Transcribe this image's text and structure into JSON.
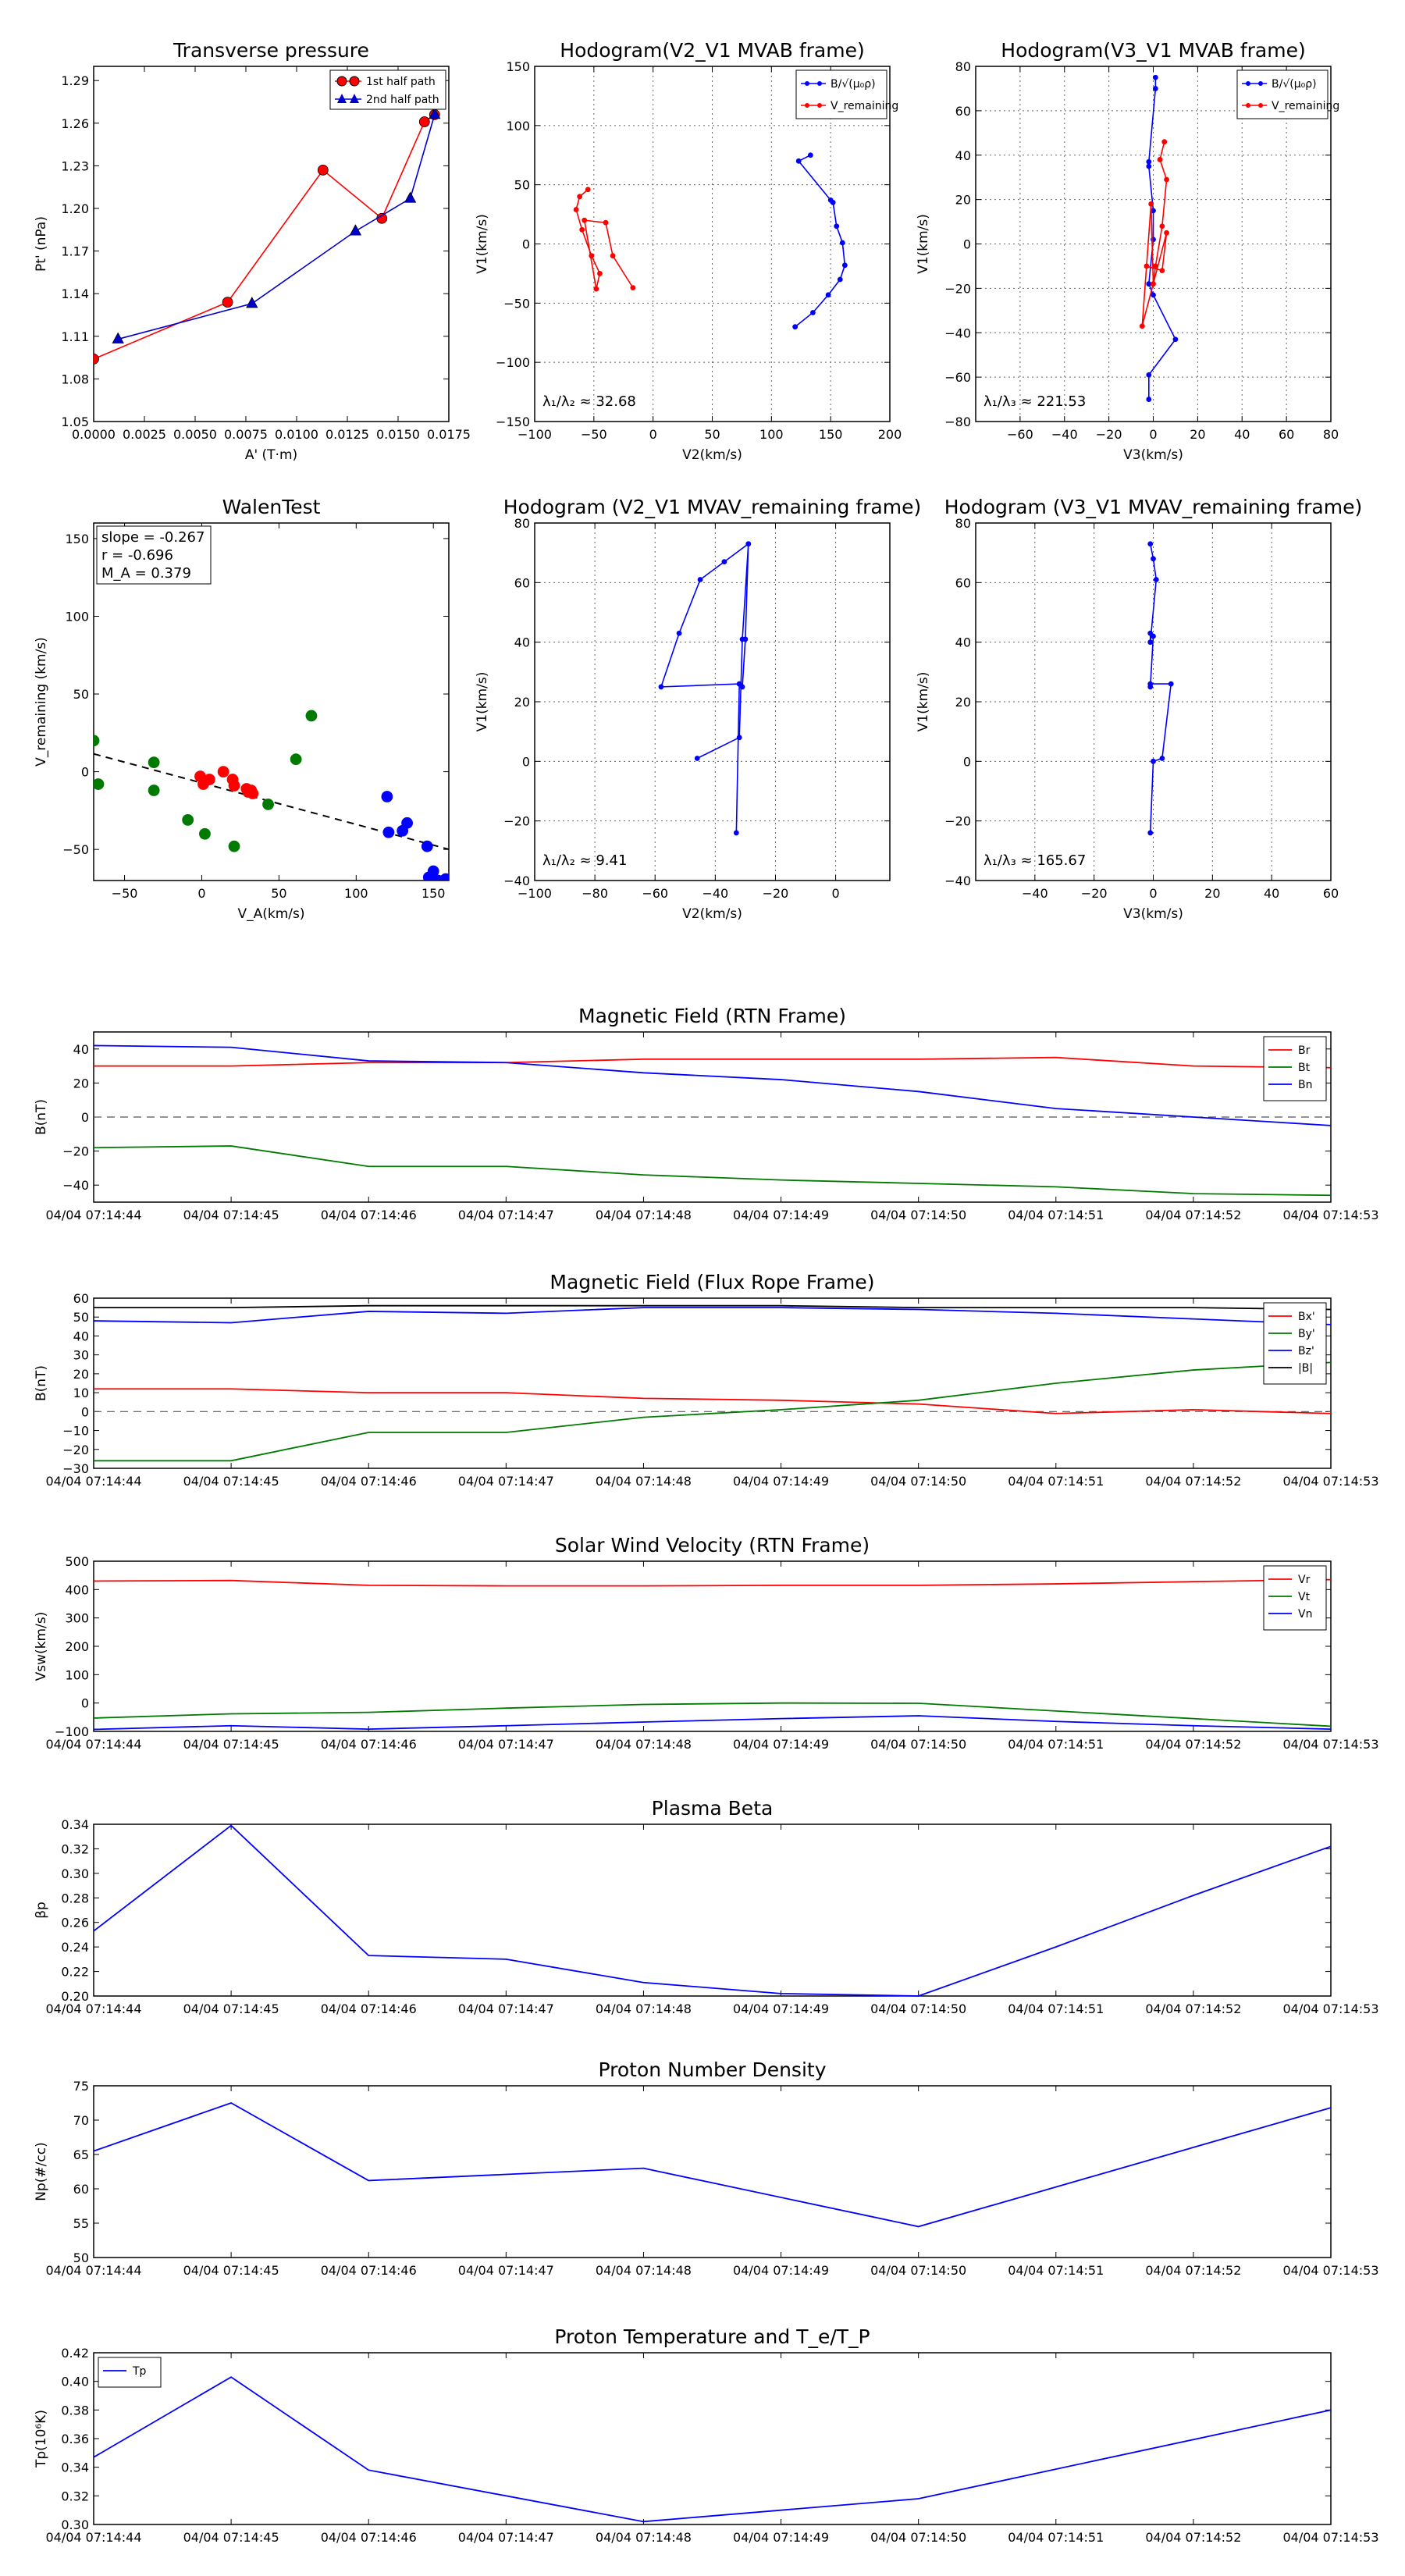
{
  "chart_data": [
    {
      "id": "tp",
      "type": "line",
      "title": "Transverse pressure",
      "xlabel": "A' (T·m)",
      "ylabel": "Pt' (nPa)",
      "xlim": [
        0,
        0.0175
      ],
      "ylim": [
        1.05,
        1.3
      ],
      "xticks": [
        0,
        0.0025,
        0.005,
        0.0075,
        0.01,
        0.0125,
        0.015,
        0.0175
      ],
      "xtick_labels": [
        "0.0000",
        "0.0025",
        "0.0050",
        "0.0075",
        "0.0100",
        "0.0125",
        "0.0150",
        "0.0175"
      ],
      "yticks": [
        1.05,
        1.08,
        1.11,
        1.14,
        1.17,
        1.2,
        1.23,
        1.26,
        1.29
      ],
      "ytick_labels": [
        "1.05",
        "1.08",
        "1.11",
        "1.14",
        "1.17",
        "1.20",
        "1.23",
        "1.26",
        "1.29"
      ],
      "grid": false,
      "legend_loc": "top-right",
      "series": [
        {
          "name": "1st half path",
          "color": "#ff0000",
          "marker": "circle",
          "x": [
            0,
            0.0066,
            0.0113,
            0.0142,
            0.0163,
            0.0168
          ],
          "y": [
            1.094,
            1.134,
            1.227,
            1.193,
            1.261,
            1.266
          ]
        },
        {
          "name": "2nd half path",
          "color": "#0000cc",
          "marker": "triangle",
          "x": [
            0.0168,
            0.0156,
            0.0129,
            0.0078,
            0.0012
          ],
          "y": [
            1.266,
            1.207,
            1.184,
            1.133,
            1.108
          ]
        }
      ]
    },
    {
      "id": "h1",
      "type": "line",
      "title": "Hodogram(V2_V1 MVAB frame)",
      "xlabel": "V2(km/s)",
      "ylabel": "V1(km/s)",
      "xlim": [
        -100,
        200
      ],
      "ylim": [
        -150,
        150
      ],
      "xticks": [
        -100,
        -50,
        0,
        50,
        100,
        150,
        200
      ],
      "xtick_labels": [
        "−100",
        "−50",
        "0",
        "50",
        "100",
        "150",
        "200"
      ],
      "yticks": [
        -150,
        -100,
        -50,
        0,
        50,
        100,
        150
      ],
      "ytick_labels": [
        "−150",
        "−100",
        "−50",
        "0",
        "50",
        "100",
        "150"
      ],
      "grid": true,
      "legend_loc": "top-right",
      "legend": [
        "B/√(μ₀ρ)",
        "V_remaining"
      ],
      "annotation": "λ₁/λ₂ ≈ 32.68",
      "series": [
        {
          "name": "B",
          "color": "#0000ff",
          "x": [
            133,
            123,
            150,
            152,
            155,
            160,
            162,
            158,
            148,
            135,
            120
          ],
          "y": [
            75,
            70,
            37,
            35,
            15,
            1,
            -18,
            -30,
            -43,
            -58,
            -70
          ]
        },
        {
          "name": "V",
          "color": "#ff0000",
          "x": [
            -55,
            -62,
            -65,
            -60,
            -52,
            -45,
            -48,
            -58,
            -40,
            -34,
            -17
          ],
          "y": [
            46,
            40,
            29,
            12,
            -10,
            -25,
            -38,
            20,
            18,
            -10,
            -37
          ]
        }
      ]
    },
    {
      "id": "h2",
      "type": "line",
      "title": "Hodogram(V3_V1 MVAB frame)",
      "xlabel": "V3(km/s)",
      "ylabel": "V1(km/s)",
      "xlim": [
        -80,
        80
      ],
      "ylim": [
        -80,
        80
      ],
      "xticks": [
        -60,
        -40,
        -20,
        0,
        20,
        40,
        60,
        80
      ],
      "xtick_labels": [
        "−60",
        "−40",
        "−20",
        "0",
        "20",
        "40",
        "60",
        "80"
      ],
      "yticks": [
        -80,
        -60,
        -40,
        -20,
        0,
        20,
        40,
        60,
        80
      ],
      "ytick_labels": [
        "−80",
        "−60",
        "−40",
        "−20",
        "0",
        "20",
        "40",
        "60",
        "80"
      ],
      "grid": true,
      "legend_loc": "top-right",
      "legend": [
        "B/√(μ₀ρ)",
        "V_remaining"
      ],
      "annotation": "λ₁/λ₃ ≈ 221.53",
      "series": [
        {
          "name": "B",
          "color": "#0000ff",
          "x": [
            1,
            1,
            -2,
            -2,
            0,
            0,
            -2,
            0,
            10,
            -2,
            -2
          ],
          "y": [
            75,
            70,
            37,
            35,
            15,
            2,
            -18,
            -23,
            -43,
            -59,
            -70
          ]
        },
        {
          "name": "V",
          "color": "#ff0000",
          "x": [
            5,
            3,
            6,
            4,
            1,
            0,
            -1,
            -5,
            6,
            4,
            -3
          ],
          "y": [
            46,
            38,
            29,
            8,
            -10,
            -18,
            18,
            -37,
            5,
            -12,
            -10
          ]
        }
      ]
    },
    {
      "id": "walen",
      "type": "scatter",
      "title": "WalenTest",
      "xlabel": "V_A(km/s)",
      "ylabel": "V_remaining (km/s)",
      "xlim": [
        -70,
        160
      ],
      "ylim": [
        -70,
        160
      ],
      "xticks": [
        -50,
        0,
        50,
        100,
        150
      ],
      "xtick_labels": [
        "−50",
        "0",
        "50",
        "100",
        "150"
      ],
      "yticks": [
        -50,
        0,
        50,
        100,
        150
      ],
      "ytick_labels": [
        "−50",
        "0",
        "50",
        "100",
        "150"
      ],
      "grid": false,
      "stats": [
        "slope = -0.267",
        "r = -0.696",
        "M_A = 0.379"
      ],
      "fit_line": {
        "slope": -0.267,
        "intercept": -7.2
      },
      "series": [
        {
          "name": "green",
          "color": "#007a00",
          "x": [
            -70,
            -67,
            -31,
            -31,
            -9,
            2,
            21,
            43,
            61,
            71
          ],
          "y": [
            20,
            -8,
            6,
            -12,
            -31,
            -40,
            -48,
            -21,
            8,
            36
          ]
        },
        {
          "name": "red",
          "color": "#ff0000",
          "x": [
            -1,
            1,
            5,
            14,
            20,
            21,
            29,
            30,
            32,
            33
          ],
          "y": [
            -3,
            -8,
            -5,
            0,
            -5,
            -9,
            -11,
            -13,
            -12,
            -14
          ]
        },
        {
          "name": "blue",
          "color": "#0000ff",
          "x": [
            120,
            121,
            130,
            133,
            146,
            147,
            150,
            153,
            158
          ],
          "y": [
            -16,
            -39,
            -38,
            -33,
            -48,
            -68,
            -64,
            -70,
            -69
          ]
        }
      ]
    },
    {
      "id": "h3",
      "type": "line",
      "title": "Hodogram (V2_V1 MVAV_remaining frame)",
      "xlabel": "V2(km/s)",
      "ylabel": "V1(km/s)",
      "xlim": [
        -100,
        18
      ],
      "ylim": [
        -40,
        80
      ],
      "xticks": [
        -100,
        -80,
        -60,
        -40,
        -20,
        0
      ],
      "xtick_labels": [
        "−100",
        "−80",
        "−60",
        "−40",
        "−20",
        "0"
      ],
      "yticks": [
        -40,
        -20,
        0,
        20,
        40,
        60,
        80
      ],
      "ytick_labels": [
        "−40",
        "−20",
        "0",
        "20",
        "40",
        "60",
        "80"
      ],
      "grid": true,
      "annotation": "λ₁/λ₂ ≈ 9.41",
      "series": [
        {
          "name": "B",
          "color": "#0000ff",
          "x": [
            -29,
            -30,
            -31,
            -32,
            -58,
            -52,
            -45,
            -37,
            -29,
            -31,
            -32,
            -46
          ],
          "y": [
            73,
            41,
            25,
            26,
            25,
            43,
            61,
            67,
            73,
            41,
            8,
            1
          ]
        },
        {
          "name": "B2",
          "color": "#0000ff",
          "x": [
            -32,
            -33
          ],
          "y": [
            26,
            -24
          ]
        }
      ]
    },
    {
      "id": "h4",
      "type": "line",
      "title": "Hodogram (V3_V1 MVAV_remaining frame)",
      "xlabel": "V3(km/s)",
      "ylabel": "V1(km/s)",
      "xlim": [
        -60,
        60
      ],
      "ylim": [
        -40,
        80
      ],
      "xticks": [
        -40,
        -20,
        0,
        20,
        40,
        60
      ],
      "xtick_labels": [
        "−40",
        "−20",
        "0",
        "20",
        "40",
        "60"
      ],
      "yticks": [
        -40,
        -20,
        0,
        20,
        40,
        60,
        80
      ],
      "ytick_labels": [
        "−40",
        "−20",
        "0",
        "20",
        "40",
        "60",
        "80"
      ],
      "grid": true,
      "annotation": "λ₁/λ₃ ≈ 165.67",
      "series": [
        {
          "name": "B",
          "color": "#0000ff",
          "x": [
            -1,
            0,
            1,
            -1,
            -1,
            0,
            -1,
            -1,
            6,
            3,
            0,
            -1
          ],
          "y": [
            73,
            68,
            61,
            40,
            43,
            42,
            25,
            26,
            26,
            1,
            0,
            -24
          ]
        }
      ]
    },
    {
      "id": "mag_rtn",
      "type": "line",
      "title": "Magnetic Field (RTN Frame)",
      "ylabel": "B(nT)",
      "ylim": [
        -50,
        50
      ],
      "yticks": [
        -40,
        -20,
        0,
        20,
        40
      ],
      "ytick_labels": [
        "−40",
        "−20",
        "0",
        "20",
        "40"
      ],
      "zero_line": true,
      "legend_loc": "top-right",
      "series": [
        {
          "name": "Br",
          "color": "#ff0000",
          "values": [
            30,
            30,
            32,
            32,
            34,
            34,
            34,
            35,
            30,
            29
          ]
        },
        {
          "name": "Bt",
          "color": "#007a00",
          "values": [
            -18,
            -17,
            -29,
            -29,
            -34,
            -37,
            -39,
            -41,
            -45,
            -46
          ]
        },
        {
          "name": "Bn",
          "color": "#0000ff",
          "values": [
            42,
            41,
            33,
            32,
            26,
            22,
            15,
            5,
            0,
            -5
          ]
        }
      ]
    },
    {
      "id": "mag_fr",
      "type": "line",
      "title": "Magnetic Field (Flux Rope Frame)",
      "ylabel": "B(nT)",
      "ylim": [
        -30,
        60
      ],
      "yticks": [
        -30,
        -20,
        -10,
        0,
        10,
        20,
        30,
        40,
        50,
        60
      ],
      "ytick_labels": [
        "−30",
        "−20",
        "−10",
        "0",
        "10",
        "20",
        "30",
        "40",
        "50",
        "60"
      ],
      "zero_line": true,
      "legend_loc": "top-right",
      "series": [
        {
          "name": "Bx'",
          "color": "#ff0000",
          "values": [
            12,
            12,
            10,
            10,
            7,
            6,
            4,
            -1,
            1,
            -1
          ]
        },
        {
          "name": "By'",
          "color": "#007a00",
          "values": [
            -26,
            -26,
            -11,
            -11,
            -3,
            1,
            6,
            15,
            22,
            26
          ]
        },
        {
          "name": "Bz'",
          "color": "#0000ff",
          "values": [
            48,
            47,
            53,
            52,
            55,
            55,
            54,
            52,
            49,
            46
          ]
        },
        {
          "name": "|B|",
          "color": "#000000",
          "values": [
            55,
            55,
            56,
            56,
            56,
            56,
            55,
            55,
            55,
            54
          ]
        }
      ]
    },
    {
      "id": "vsw",
      "type": "line",
      "title": "Solar Wind Velocity (RTN Frame)",
      "ylabel": "Vsw(km/s)",
      "ylim": [
        -100,
        500
      ],
      "yticks": [
        -100,
        0,
        100,
        200,
        300,
        400,
        500
      ],
      "ytick_labels": [
        "−100",
        "0",
        "100",
        "200",
        "300",
        "400",
        "500"
      ],
      "legend_loc": "top-right",
      "series": [
        {
          "name": "Vr",
          "color": "#ff0000",
          "values": [
            430,
            432,
            415,
            413,
            413,
            415,
            415,
            420,
            428,
            435
          ]
        },
        {
          "name": "Vt",
          "color": "#007a00",
          "values": [
            -53,
            -38,
            -33,
            -18,
            -5,
            0,
            -1,
            -28,
            -55,
            -82
          ]
        },
        {
          "name": "Vn",
          "color": "#0000ff",
          "values": [
            -93,
            -80,
            -92,
            -80,
            -67,
            -55,
            -45,
            -65,
            -80,
            -92
          ]
        }
      ]
    },
    {
      "id": "beta",
      "type": "line",
      "title": "Plasma Beta",
      "ylabel": "βp",
      "ylim": [
        0.2,
        0.34
      ],
      "yticks": [
        0.2,
        0.22,
        0.24,
        0.26,
        0.28,
        0.3,
        0.32,
        0.34
      ],
      "ytick_labels": [
        "0.20",
        "0.22",
        "0.24",
        "0.26",
        "0.28",
        "0.30",
        "0.32",
        "0.34"
      ],
      "series": [
        {
          "name": "beta",
          "color": "#0000ff",
          "values": [
            0.253,
            0.339,
            0.233,
            0.23,
            0.211,
            0.202,
            0.2,
            0.24,
            0.282,
            0.322
          ]
        }
      ]
    },
    {
      "id": "np",
      "type": "line",
      "title": "Proton Number Density",
      "ylabel": "Np(#/cc)",
      "ylim": [
        50,
        75
      ],
      "yticks": [
        50,
        55,
        60,
        65,
        70,
        75
      ],
      "ytick_labels": [
        "50",
        "55",
        "60",
        "65",
        "70",
        "75"
      ],
      "series": [
        {
          "name": "Np",
          "color": "#0000ff",
          "values": [
            65.5,
            72.5,
            61.2,
            62.1,
            63,
            null,
            54.5,
            null,
            null,
            71.8
          ]
        }
      ]
    },
    {
      "id": "tp2",
      "type": "line",
      "title": "Proton Temperature and T_e/T_P",
      "ylabel": "Tp(10⁶K)",
      "ylim": [
        0.3,
        0.42
      ],
      "yticks": [
        0.3,
        0.32,
        0.34,
        0.36,
        0.38,
        0.4,
        0.42
      ],
      "ytick_labels": [
        "0.30",
        "0.32",
        "0.34",
        "0.36",
        "0.38",
        "0.40",
        "0.42"
      ],
      "legend_loc": "top-left",
      "series": [
        {
          "name": "Tp",
          "color": "#0000ff",
          "values": [
            0.347,
            0.403,
            0.338,
            null,
            0.302,
            null,
            0.318,
            null,
            null,
            0.38
          ]
        }
      ]
    }
  ],
  "time_labels": [
    "04/04 07:14:44",
    "04/04 07:14:45",
    "04/04 07:14:46",
    "04/04 07:14:47",
    "04/04 07:14:48",
    "04/04 07:14:49",
    "04/04 07:14:50",
    "04/04 07:14:51",
    "04/04 07:14:52",
    "04/04 07:14:53"
  ]
}
